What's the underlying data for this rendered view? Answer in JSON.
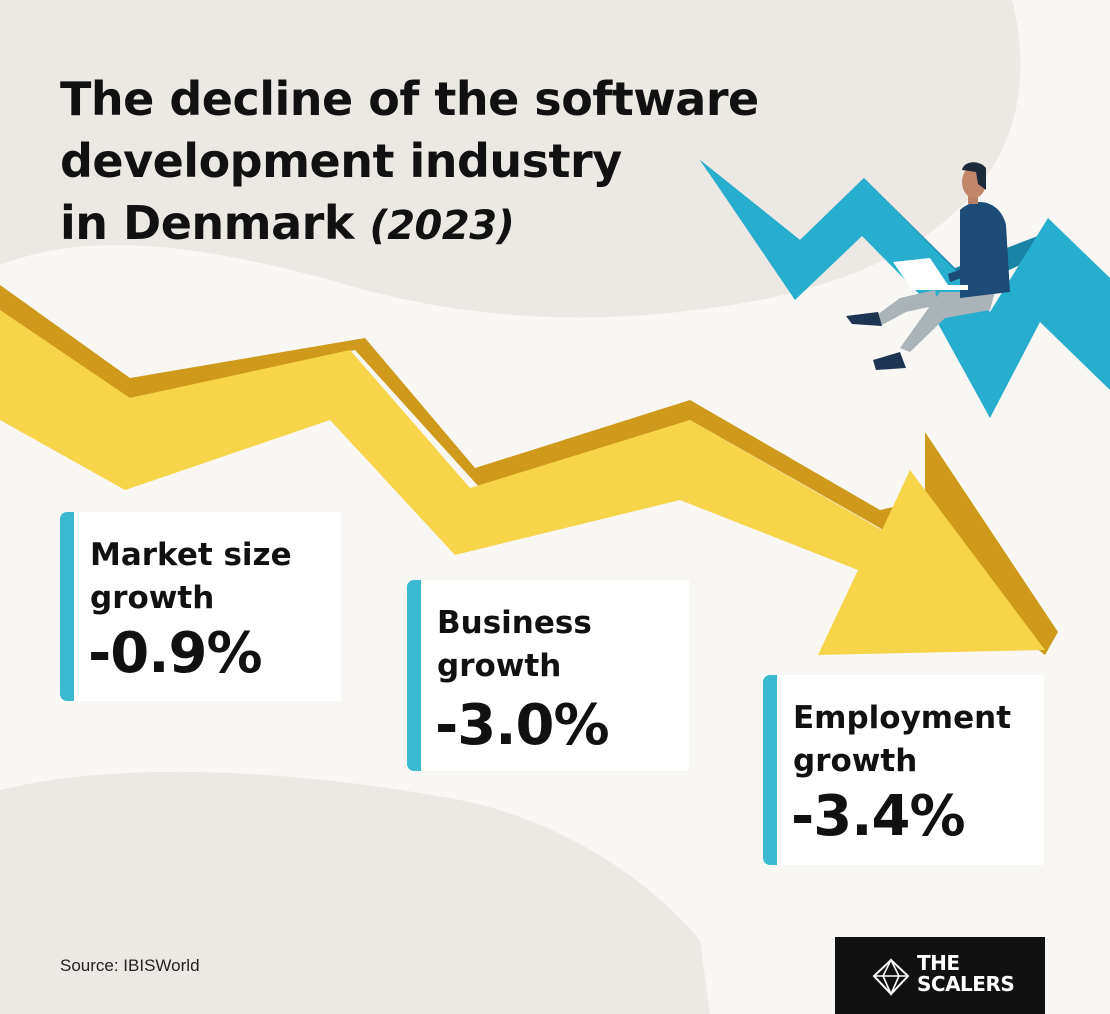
{
  "title": {
    "line1": "The decline of the software",
    "line2": "development industry",
    "line3": "in Denmark",
    "year": "(2023)"
  },
  "stats": [
    {
      "label_line1": "Market size",
      "label_line2": "growth",
      "value": "-0.9%"
    },
    {
      "label_line1": "Business",
      "label_line2": "growth",
      "value": "-3.0%"
    },
    {
      "label_line1": "Employment",
      "label_line2": "growth",
      "value": "-3.4%"
    }
  ],
  "source": "Source: IBISWorld",
  "logo": {
    "line1": "THE",
    "line2": "SCALERS"
  },
  "colors": {
    "background": "#f8f7f3",
    "blob": "#ece9e4",
    "arrow_yellow": "#f7d44a",
    "arrow_dark": "#cf9a1c",
    "accent_blue": "#3bb9d0",
    "card": "#ffffff",
    "text": "#111111"
  }
}
